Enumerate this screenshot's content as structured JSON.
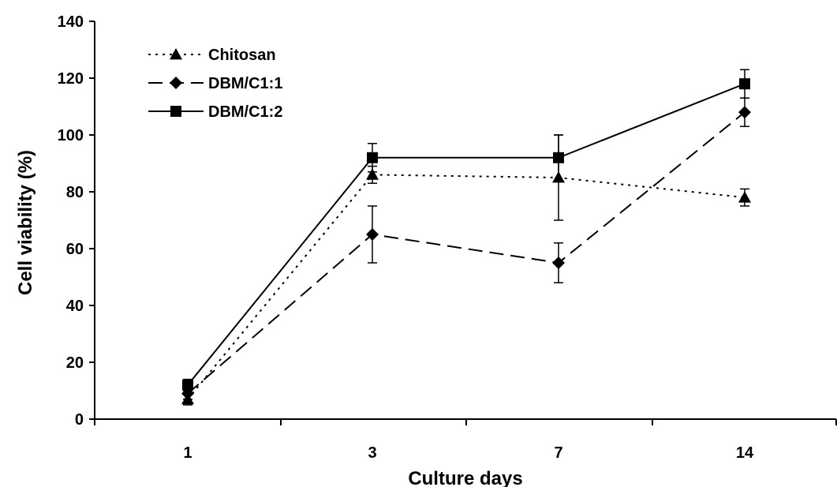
{
  "chart_data": {
    "type": "line",
    "categories": [
      "1",
      "3",
      "7",
      "14"
    ],
    "xlabel": "Culture days",
    "ylabel": "Cell viability (%)",
    "ylim": [
      0,
      140
    ],
    "yticks": [
      "0",
      "20",
      "40",
      "60",
      "80",
      "100",
      "120",
      "140"
    ],
    "grid": false,
    "legend_position": "top-left",
    "series": [
      {
        "name": "Chitosan",
        "values": [
          7,
          86,
          85,
          78
        ],
        "errors": [
          2,
          3,
          15,
          3
        ],
        "marker": "triangle",
        "line_style": "dotted",
        "color": "#000000"
      },
      {
        "name": "DBM/C1:1",
        "values": [
          9,
          65,
          55,
          108
        ],
        "errors": [
          2,
          10,
          7,
          5
        ],
        "marker": "diamond",
        "line_style": "dashed",
        "color": "#000000"
      },
      {
        "name": "DBM/C1:2",
        "values": [
          12,
          92,
          92,
          118
        ],
        "errors": [
          2,
          5,
          8,
          5
        ],
        "marker": "square",
        "line_style": "solid",
        "color": "#000000"
      }
    ]
  }
}
